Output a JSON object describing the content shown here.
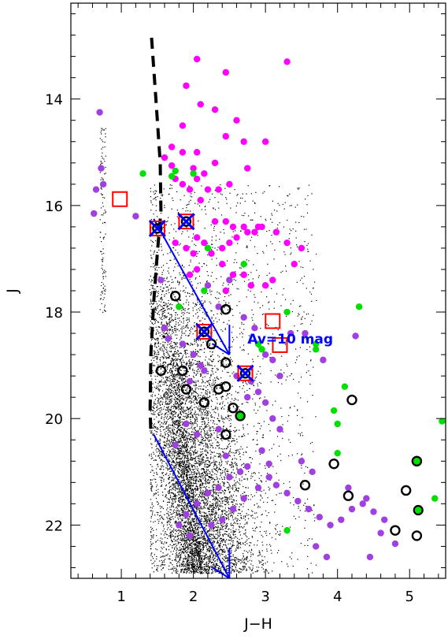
{
  "chart_data": {
    "type": "scatter",
    "title": "",
    "xlabel": "J−H",
    "ylabel": "J",
    "xlim": [
      0.3,
      5.5
    ],
    "ylim": [
      23.0,
      12.2
    ],
    "y_inverted": true,
    "xticks": [
      1,
      2,
      3,
      4,
      5
    ],
    "xtick_labels": [
      "1",
      "2",
      "3",
      "4",
      "5"
    ],
    "yticks": [
      14,
      16,
      18,
      20,
      22
    ],
    "ytick_labels": [
      "14",
      "16",
      "18",
      "20",
      "22"
    ],
    "grid": false,
    "legend": "none",
    "colors": {
      "magenta": "#ff00ff",
      "green": "#00e000",
      "purple": "#a040e0",
      "field": "#000000",
      "vector": "#0000ff",
      "box": "#ff0000"
    },
    "annotations": [
      {
        "text": "Av=10 mag",
        "x": 2.75,
        "y": 18.5,
        "color": "#0000ff"
      }
    ],
    "reddening_vectors": [
      {
        "x1": 1.45,
        "y1": 16.25,
        "x2": 2.5,
        "y2": 18.8
      },
      {
        "x1": 1.45,
        "y1": 20.3,
        "x2": 2.5,
        "y2": 23.0
      }
    ],
    "isochrone_dashed": {
      "x": [
        1.42,
        1.48,
        1.54,
        1.55,
        1.5,
        1.45,
        1.41,
        1.4,
        1.41
      ],
      "y": [
        12.85,
        14.0,
        15.2,
        16.1,
        16.9,
        17.8,
        18.8,
        19.8,
        20.3
      ]
    },
    "field_stars": {
      "description_count": 9000,
      "main_cloud_center": [
        2.15,
        21.1
      ],
      "envelope_x": [
        1.4,
        3.7
      ],
      "envelope_y": [
        15.6,
        22.9
      ]
    },
    "series": [
      {
        "name": "magenta",
        "color": "#ff00ff",
        "x": [
          2.05,
          2.45,
          2.3,
          1.85,
          2.7,
          3.3,
          1.9,
          2.1,
          2.6,
          2.45,
          1.7,
          1.85,
          2.05,
          1.6,
          1.7,
          2.0,
          2.3,
          2.15,
          3.0,
          2.75,
          1.75,
          1.85,
          1.95,
          2.05,
          2.1,
          2.2,
          2.35,
          2.5,
          2.3,
          2.45,
          2.55,
          2.7,
          2.9,
          2.05,
          1.75,
          1.9,
          2.0,
          2.15,
          2.25,
          2.4,
          2.5,
          2.6,
          2.75,
          2.85,
          2.95,
          2.4,
          2.55,
          2.7,
          2.8,
          3.15,
          3.3,
          3.5,
          3.1,
          3.0,
          3.4,
          2.45,
          1.95,
          2.05
        ],
        "y": [
          13.25,
          13.5,
          14.2,
          14.5,
          14.8,
          13.3,
          13.75,
          14.1,
          14.4,
          14.7,
          14.9,
          15.0,
          15.0,
          15.1,
          15.25,
          15.3,
          15.2,
          15.4,
          14.8,
          15.3,
          15.5,
          15.6,
          15.7,
          15.5,
          15.9,
          15.7,
          15.7,
          15.6,
          16.3,
          16.3,
          16.4,
          16.4,
          16.4,
          16.6,
          16.7,
          16.8,
          16.9,
          16.7,
          16.9,
          16.8,
          16.7,
          16.6,
          16.5,
          16.5,
          16.4,
          17.1,
          17.3,
          17.3,
          17.5,
          16.5,
          16.7,
          16.8,
          17.4,
          17.5,
          17.1,
          17.6,
          17.3,
          17.2
        ]
      },
      {
        "name": "green",
        "color": "#00e000",
        "x": [
          1.3,
          1.7,
          1.75,
          2.0,
          2.2,
          2.15,
          2.7,
          1.8,
          3.3,
          3.7,
          4.3,
          2.95,
          3.7,
          4.1,
          3.95,
          4.0,
          5.45,
          5.35,
          3.3,
          4.0,
          2.65,
          2.9
        ],
        "y": [
          15.4,
          15.45,
          15.35,
          15.4,
          16.8,
          17.6,
          17.1,
          17.9,
          18.0,
          18.6,
          17.9,
          18.7,
          18.7,
          19.4,
          19.85,
          20.1,
          20.05,
          21.5,
          22.1,
          20.65,
          19.95,
          18.6
        ]
      },
      {
        "name": "purple",
        "color": "#a040e0",
        "x": [
          0.7,
          0.72,
          0.75,
          0.65,
          0.62,
          1.2,
          1.55,
          1.6,
          1.65,
          1.85,
          2.0,
          2.2,
          2.35,
          2.5,
          2.7,
          2.85,
          3.0,
          3.1,
          3.2,
          2.8,
          2.9,
          3.0,
          3.1,
          3.2,
          2.95,
          3.05,
          2.65,
          2.5,
          2.35,
          2.2,
          2.05,
          1.9,
          1.8,
          1.95,
          2.25,
          2.4,
          2.55,
          2.7,
          2.9,
          3.05,
          3.15,
          3.3,
          3.45,
          3.6,
          3.75,
          3.9,
          4.05,
          4.2,
          4.35,
          4.5,
          4.65,
          2.15,
          2.6,
          2.75,
          3.35,
          3.55,
          3.8,
          4.25,
          2.05,
          1.75,
          1.9,
          2.35,
          2.45,
          2.75,
          3.5,
          3.65,
          4.15,
          4.4,
          4.6,
          4.8,
          4.45,
          2.1,
          1.95,
          3.7,
          3.85
        ],
        "y": [
          14.25,
          15.3,
          15.6,
          15.7,
          16.15,
          16.2,
          17.4,
          18.3,
          18.5,
          18.6,
          18.8,
          17.5,
          17.9,
          17.4,
          18.1,
          18.3,
          18.8,
          18.9,
          19.2,
          19.3,
          19.5,
          19.7,
          20.0,
          20.2,
          20.6,
          20.85,
          21.0,
          21.1,
          21.3,
          21.4,
          21.6,
          21.8,
          22.0,
          22.2,
          22.0,
          21.9,
          21.7,
          21.5,
          21.3,
          21.1,
          21.25,
          21.4,
          21.55,
          21.7,
          21.85,
          22.0,
          21.9,
          21.7,
          21.6,
          21.75,
          21.9,
          19.1,
          19.2,
          19.6,
          18.4,
          18.4,
          18.9,
          18.45,
          20.3,
          20.5,
          20.1,
          20.2,
          20.7,
          20.9,
          20.8,
          21.0,
          21.3,
          21.5,
          22.15,
          22.35,
          22.6,
          19.0,
          19.3,
          22.4,
          22.6
        ]
      },
      {
        "name": "open circles",
        "color": "#000000",
        "x": [
          1.75,
          2.45,
          2.25,
          2.45,
          1.55,
          1.85,
          1.9,
          2.15,
          2.35,
          2.45,
          2.15,
          2.55,
          2.45,
          2.65,
          3.55,
          3.95,
          4.15,
          4.2,
          4.95,
          5.1,
          4.8,
          5.1
        ],
        "y": [
          17.7,
          17.95,
          18.6,
          18.95,
          19.1,
          19.1,
          19.45,
          19.7,
          19.45,
          19.4,
          19.7,
          19.8,
          20.3,
          19.95,
          21.25,
          20.85,
          21.45,
          19.65,
          21.35,
          20.8,
          22.1,
          22.2
        ]
      },
      {
        "name": "red boxes",
        "color": "#ff0000",
        "x": [
          0.98,
          1.5,
          1.9,
          2.15,
          2.72,
          3.1,
          3.2
        ],
        "y": [
          15.88,
          16.43,
          16.3,
          18.37,
          19.15,
          18.17,
          18.62
        ]
      },
      {
        "name": "blue crosses",
        "color": "#0000ff",
        "x": [
          1.5,
          1.9,
          2.15,
          2.72
        ],
        "y": [
          16.43,
          16.3,
          18.37,
          19.15
        ]
      }
    ]
  }
}
